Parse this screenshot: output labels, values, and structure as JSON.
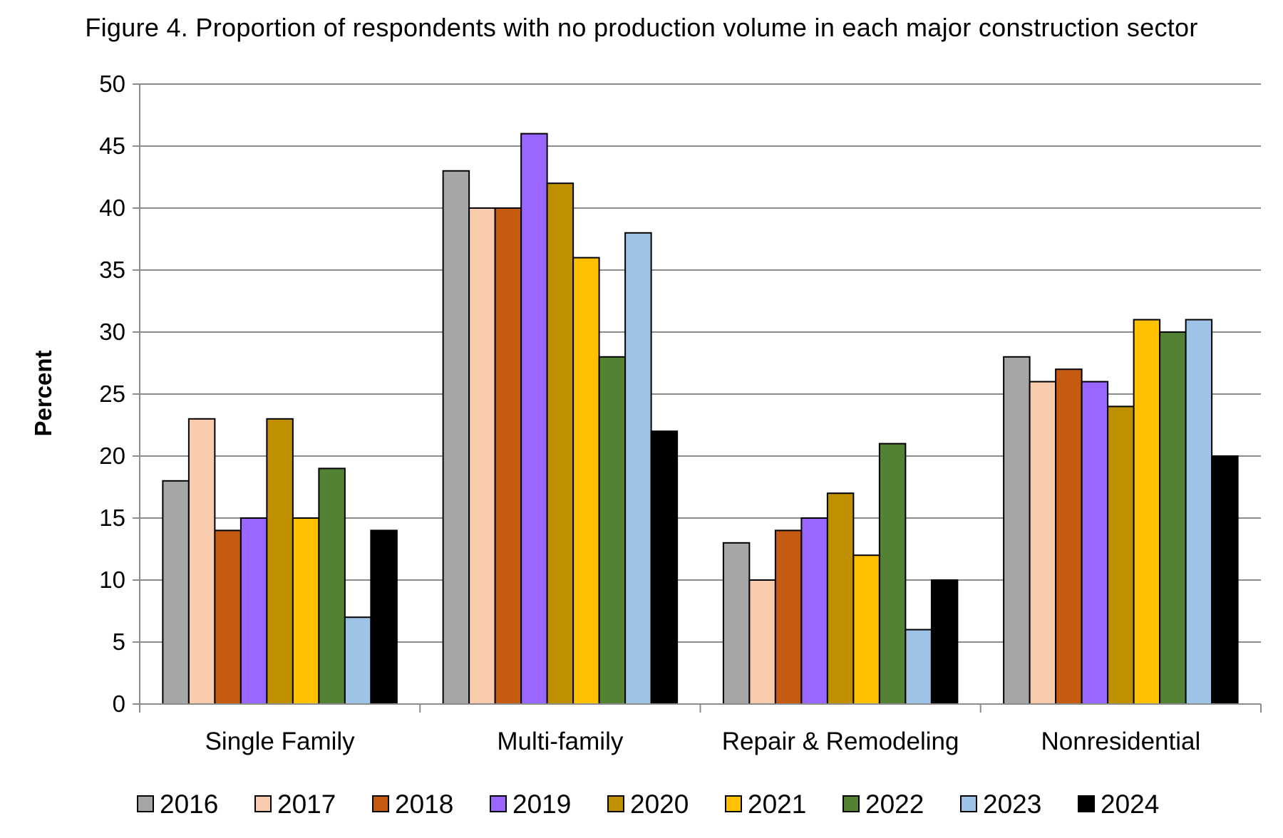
{
  "chart_data": {
    "type": "bar",
    "title": "Figure 4. Proportion of respondents with no production volume in each major construction sector",
    "xlabel": "",
    "ylabel": "Percent",
    "ylim": [
      0,
      50
    ],
    "yticks": [
      0,
      5,
      10,
      15,
      20,
      25,
      30,
      35,
      40,
      45,
      50
    ],
    "grid": true,
    "legend_position": "bottom",
    "categories": [
      "Single Family",
      "Multi-family",
      "Repair & Remodeling",
      "Nonresidential"
    ],
    "series": [
      {
        "name": "2016",
        "color": "#a6a6a6",
        "values": [
          18,
          43,
          13,
          28
        ]
      },
      {
        "name": "2017",
        "color": "#f8cbad",
        "values": [
          23,
          40,
          10,
          26
        ]
      },
      {
        "name": "2018",
        "color": "#c55a11",
        "values": [
          14,
          40,
          14,
          27
        ]
      },
      {
        "name": "2019",
        "color": "#9966ff",
        "values": [
          15,
          46,
          15,
          26
        ]
      },
      {
        "name": "2020",
        "color": "#bf9000",
        "values": [
          23,
          42,
          17,
          24
        ]
      },
      {
        "name": "2021",
        "color": "#ffc000",
        "values": [
          15,
          36,
          12,
          31
        ]
      },
      {
        "name": "2022",
        "color": "#548235",
        "values": [
          19,
          28,
          21,
          30
        ]
      },
      {
        "name": "2023",
        "color": "#9dc3e6",
        "values": [
          7,
          38,
          6,
          31
        ]
      },
      {
        "name": "2024",
        "color": "#000000",
        "values": [
          14,
          22,
          10,
          20
        ]
      }
    ]
  }
}
